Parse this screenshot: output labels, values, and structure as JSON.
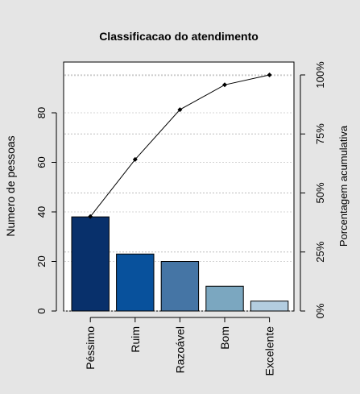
{
  "chart_data": {
    "type": "bar",
    "title": "Classificacao do atendimento",
    "ylabel": "Numero de pessoas",
    "y2label": "Porcentagem acumulativa",
    "categories": [
      "Péssimo",
      "Ruim",
      "Razoável",
      "Bom",
      "Excelente"
    ],
    "values": [
      38,
      23,
      20,
      10,
      4
    ],
    "cumulative_percent": [
      40.0,
      64.2,
      85.3,
      95.8,
      100.0
    ],
    "ylim": [
      0,
      100
    ],
    "y_ticks": [
      0,
      20,
      40,
      60,
      80
    ],
    "y2_ticks": [
      "0%",
      "25%",
      "50%",
      "75%",
      "100%"
    ],
    "y2_tick_values": [
      0,
      25,
      50,
      75,
      100
    ],
    "grid": "horizontal dotted",
    "colors": [
      "#08306b",
      "#08519c",
      "#4575a5",
      "#7ba7c0",
      "#b3cde0"
    ],
    "background": "#e5e5e5",
    "plot_background": "#ffffff"
  }
}
